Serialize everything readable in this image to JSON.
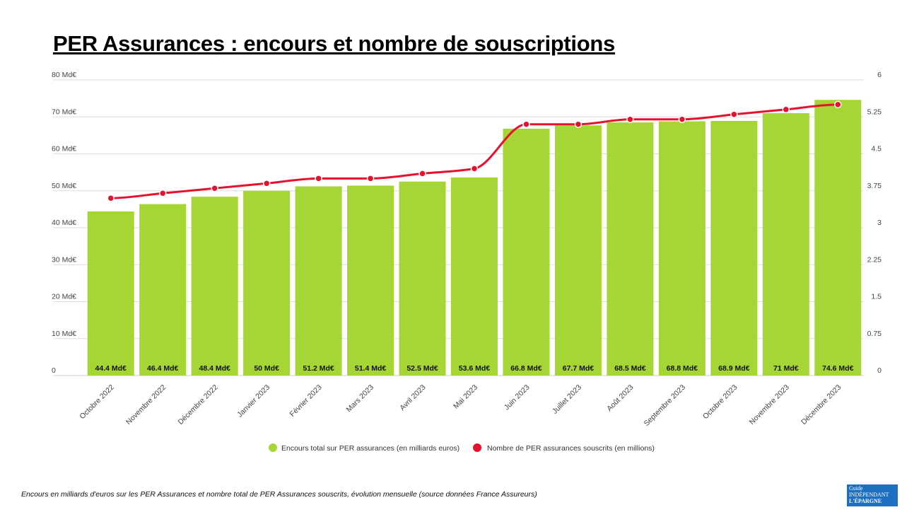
{
  "title": "PER Assurances : encours et nombre de souscriptions",
  "caption": "Encours en milliards d'euros sur les PER Assurances et nombre total de PER Assurances souscrits, évolution mensuelle (source données France Assureurs)",
  "logo": "Le Guide indépendant de l'Épargne",
  "chart_data": {
    "type": "bar+line",
    "categories": [
      "Octobre 2022",
      "Novembre 2022",
      "Décembre 2022",
      "Janvier 2023",
      "Février 2023",
      "Mars 2023",
      "Avril 2023",
      "Mai 2023",
      "Juin 2023",
      "Juillet 2023",
      "Août 2023",
      "Septembre 2023",
      "Octobre 2023",
      "Novembre 2023",
      "Décembre 2023"
    ],
    "series": [
      {
        "name": "Encours total sur PER assurances (en milliards euros)",
        "type": "bar",
        "axis": "left",
        "color": "#a6d536",
        "values": [
          44.4,
          46.4,
          48.4,
          50,
          51.2,
          51.4,
          52.5,
          53.6,
          66.8,
          67.7,
          68.5,
          68.8,
          68.9,
          71,
          74.6
        ],
        "data_labels": [
          "44.4 Md€",
          "46.4 Md€",
          "48.4 Md€",
          "50 Md€",
          "51.2 Md€",
          "51.4 Md€",
          "52.5 Md€",
          "53.6 Md€",
          "66.8 Md€",
          "67.7 Md€",
          "68.5 Md€",
          "68.8 Md€",
          "68.9 Md€",
          "71 Md€",
          "74.6 Md€"
        ]
      },
      {
        "name": "Nombre de PER assurances souscrits (en millions)",
        "type": "line",
        "axis": "right",
        "color": "#e8112d",
        "values": [
          3.6,
          3.7,
          3.8,
          3.9,
          4.0,
          4.0,
          4.1,
          4.2,
          5.1,
          5.1,
          5.2,
          5.2,
          5.3,
          5.4,
          5.5
        ]
      }
    ],
    "y_left": {
      "range": [
        0,
        80
      ],
      "ticks": [
        "0",
        "10 Md€",
        "20 Md€",
        "30 Md€",
        "40 Md€",
        "50 Md€",
        "60 Md€",
        "70 Md€",
        "80 Md€"
      ]
    },
    "y_right": {
      "range": [
        0,
        6
      ],
      "ticks": [
        "0",
        "0.75",
        "1.5",
        "2.25",
        "3",
        "3.75",
        "4.5",
        "5.25",
        "6"
      ]
    },
    "grid": true,
    "legend": "bottom"
  }
}
